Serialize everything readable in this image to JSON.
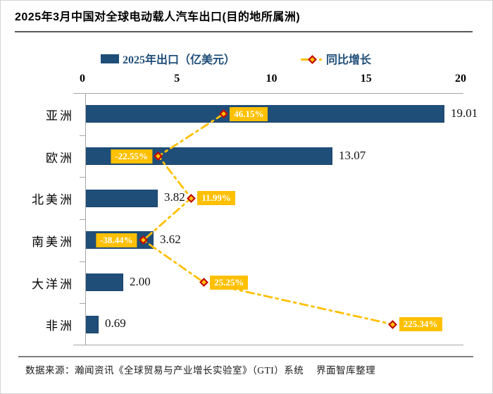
{
  "title": "2025年3月中国对全球电动载人汽车出口(目的地所属洲)",
  "legend": {
    "bar_label": "2025年出口（亿美元）",
    "line_label": "同比增长"
  },
  "footer": {
    "source": "数据来源：瀚闻资讯《全球贸易与产业增长实验室》（GTI）系统　 界面智库整理"
  },
  "colors": {
    "bar": "#1F4E79",
    "bar_edge": "#1A4166",
    "legend_text": "#1F4E79",
    "marker_fill": "#FFC000",
    "marker_border": "#C00000",
    "trend_line": "#FFC000",
    "growth_label_bg": "#FFC000",
    "growth_label_text": "#FFFFFF",
    "axis_line": "#A6A6A6"
  },
  "chart_data": {
    "type": "bar",
    "orientation": "horizontal",
    "title": "2025年3月中国对全球电动载人汽车出口(目的地所属洲)",
    "categories": [
      "亚洲",
      "欧洲",
      "北美洲",
      "南美洲",
      "大洋洲",
      "非洲"
    ],
    "series": [
      {
        "name": "2025年出口（亿美元）",
        "type": "bar",
        "values": [
          19.01,
          13.07,
          3.82,
          3.62,
          2.0,
          0.69
        ],
        "value_labels": [
          "19.01",
          "13.07",
          "3.82",
          "3.62",
          "2.00",
          "0.69"
        ]
      },
      {
        "name": "同比增长",
        "type": "line",
        "style": "dash-dot, diamond markers",
        "values_pct": [
          46.15,
          -22.55,
          11.99,
          -38.44,
          25.25,
          225.34
        ],
        "labels": [
          "46.15%",
          "-22.55%",
          "11.99%",
          "-38.44%",
          "25.25%",
          "225.34%"
        ],
        "label_side": [
          "right",
          "left",
          "right",
          "left",
          "right",
          "right"
        ]
      }
    ],
    "x_axis": {
      "position": "top",
      "min": 0,
      "max": 20,
      "tick_labels": [
        "0",
        "5",
        "10",
        "15",
        "20"
      ],
      "tick_values": [
        0,
        5,
        10,
        15,
        20
      ]
    },
    "secondary_x_axis": {
      "hidden": true,
      "min_pct": -100,
      "max_pct": 300
    },
    "grid": false,
    "legend_position": "top"
  }
}
